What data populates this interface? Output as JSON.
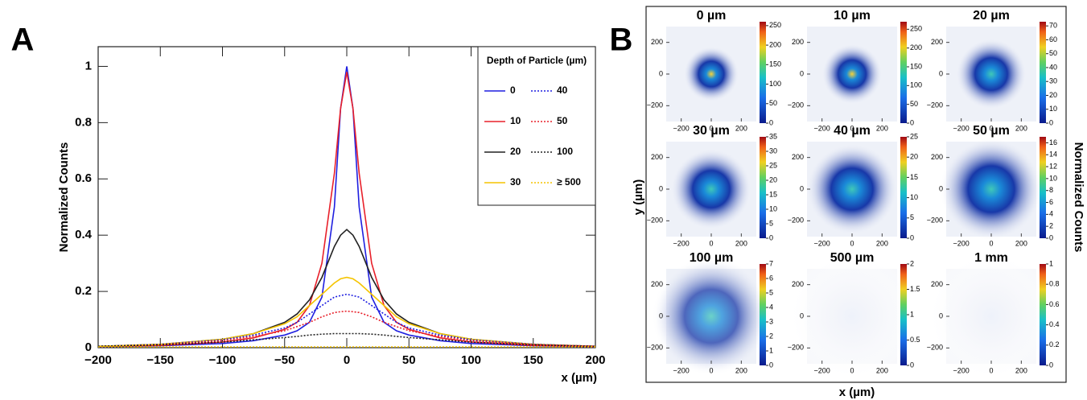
{
  "chart_data": [
    {
      "type": "line",
      "panel_label": "A",
      "ylabel": "Normalized Counts",
      "xlabel": "x (µm)",
      "legend_title": "Depth of Particle (µm)",
      "xlim": [
        -200,
        200
      ],
      "ylim": [
        0,
        1.07
      ],
      "xticks": [
        {
          "value": -200,
          "label": "−200"
        },
        {
          "value": -150,
          "label": "−150"
        },
        {
          "value": -100,
          "label": "−100"
        },
        {
          "value": -50,
          "label": "−50"
        },
        0,
        50,
        100,
        150,
        200
      ],
      "yticks": [
        0,
        0.2,
        0.4,
        0.6,
        0.8,
        1
      ],
      "x": [
        -200,
        -150,
        -100,
        -75,
        -50,
        -40,
        -30,
        -20,
        -10,
        -5,
        0,
        5,
        10,
        20,
        30,
        40,
        50,
        75,
        100,
        150,
        200
      ],
      "series": [
        {
          "name": "0",
          "color": "#1f1fe0",
          "linestyle": "solid",
          "values": [
            0.003,
            0.007,
            0.015,
            0.025,
            0.045,
            0.06,
            0.09,
            0.18,
            0.5,
            0.85,
            1.0,
            0.85,
            0.5,
            0.18,
            0.09,
            0.06,
            0.045,
            0.025,
            0.015,
            0.007,
            0.003
          ]
        },
        {
          "name": "10",
          "color": "#e8202a",
          "linestyle": "solid",
          "values": [
            0.004,
            0.008,
            0.02,
            0.035,
            0.065,
            0.09,
            0.15,
            0.3,
            0.62,
            0.85,
            0.98,
            0.85,
            0.62,
            0.3,
            0.15,
            0.09,
            0.065,
            0.035,
            0.02,
            0.008,
            0.004
          ]
        },
        {
          "name": "20",
          "color": "#222222",
          "linestyle": "solid",
          "values": [
            0.005,
            0.012,
            0.03,
            0.05,
            0.09,
            0.12,
            0.17,
            0.25,
            0.36,
            0.4,
            0.42,
            0.4,
            0.36,
            0.25,
            0.17,
            0.12,
            0.09,
            0.05,
            0.03,
            0.012,
            0.005
          ]
        },
        {
          "name": "30",
          "color": "#f5c400",
          "linestyle": "solid",
          "values": [
            0.005,
            0.012,
            0.03,
            0.05,
            0.085,
            0.11,
            0.15,
            0.19,
            0.23,
            0.245,
            0.25,
            0.245,
            0.23,
            0.19,
            0.15,
            0.11,
            0.085,
            0.05,
            0.03,
            0.012,
            0.005
          ]
        },
        {
          "name": "40",
          "color": "#1f1fe0",
          "linestyle": "dotted",
          "values": [
            0.005,
            0.012,
            0.028,
            0.045,
            0.07,
            0.09,
            0.12,
            0.15,
            0.18,
            0.185,
            0.19,
            0.185,
            0.18,
            0.15,
            0.12,
            0.09,
            0.07,
            0.045,
            0.028,
            0.012,
            0.005
          ]
        },
        {
          "name": "50",
          "color": "#e8202a",
          "linestyle": "dotted",
          "values": [
            0.005,
            0.011,
            0.025,
            0.04,
            0.06,
            0.075,
            0.09,
            0.11,
            0.125,
            0.128,
            0.13,
            0.128,
            0.125,
            0.11,
            0.09,
            0.075,
            0.06,
            0.04,
            0.025,
            0.011,
            0.005
          ]
        },
        {
          "name": "100",
          "color": "#222222",
          "linestyle": "dotted",
          "values": [
            0.005,
            0.01,
            0.02,
            0.028,
            0.036,
            0.04,
            0.045,
            0.048,
            0.05,
            0.05,
            0.05,
            0.05,
            0.05,
            0.048,
            0.045,
            0.04,
            0.036,
            0.028,
            0.02,
            0.01,
            0.005
          ]
        },
        {
          "name": "≥ 500",
          "color": "#f5c400",
          "linestyle": "dotted",
          "values": [
            0.003,
            0.003,
            0.003,
            0.003,
            0.003,
            0.003,
            0.003,
            0.003,
            0.003,
            0.003,
            0.003,
            0.003,
            0.003,
            0.003,
            0.003,
            0.003,
            0.003,
            0.003,
            0.003,
            0.003,
            0.003
          ]
        }
      ]
    },
    {
      "type": "heatmap",
      "panel_label": "B",
      "xlabel": "x (µm)",
      "ylabel": "y (µm)",
      "colorbar_label": "Normalized Counts",
      "xlim": [
        -300,
        300
      ],
      "ylim": [
        -300,
        300
      ],
      "xticks": [
        {
          "value": -200,
          "label": "−200"
        },
        0,
        200
      ],
      "yticks": [
        {
          "value": -200,
          "label": "−200"
        },
        0,
        200
      ],
      "panels": [
        {
          "title": "0 µm",
          "clim": [
            0,
            260
          ],
          "cticks": [
            0,
            50,
            100,
            150,
            200,
            250
          ]
        },
        {
          "title": "10 µm",
          "clim": [
            0,
            270
          ],
          "cticks": [
            0,
            50,
            100,
            150,
            200,
            250
          ]
        },
        {
          "title": "20 µm",
          "clim": [
            0,
            73
          ],
          "cticks": [
            0,
            10,
            20,
            30,
            40,
            50,
            60,
            70
          ]
        },
        {
          "title": "30 µm",
          "clim": [
            0,
            35
          ],
          "cticks": [
            0,
            5,
            10,
            15,
            20,
            25,
            30,
            35
          ]
        },
        {
          "title": "40 µm",
          "clim": [
            0,
            25
          ],
          "cticks": [
            0,
            5,
            10,
            15,
            20,
            25
          ]
        },
        {
          "title": "50 µm",
          "clim": [
            0,
            17
          ],
          "cticks": [
            0,
            2,
            4,
            6,
            8,
            10,
            12,
            14,
            16
          ]
        },
        {
          "title": "100 µm",
          "clim": [
            0,
            7
          ],
          "cticks": [
            0,
            1,
            2,
            3,
            4,
            5,
            6,
            7
          ]
        },
        {
          "title": "500 µm",
          "clim": [
            0,
            2
          ],
          "cticks": [
            0,
            0.5,
            1,
            1.5,
            2
          ]
        },
        {
          "title": "1 mm",
          "clim": [
            0,
            1
          ],
          "cticks": [
            0,
            0.2,
            0.4,
            0.6,
            0.8,
            1
          ]
        }
      ]
    }
  ]
}
